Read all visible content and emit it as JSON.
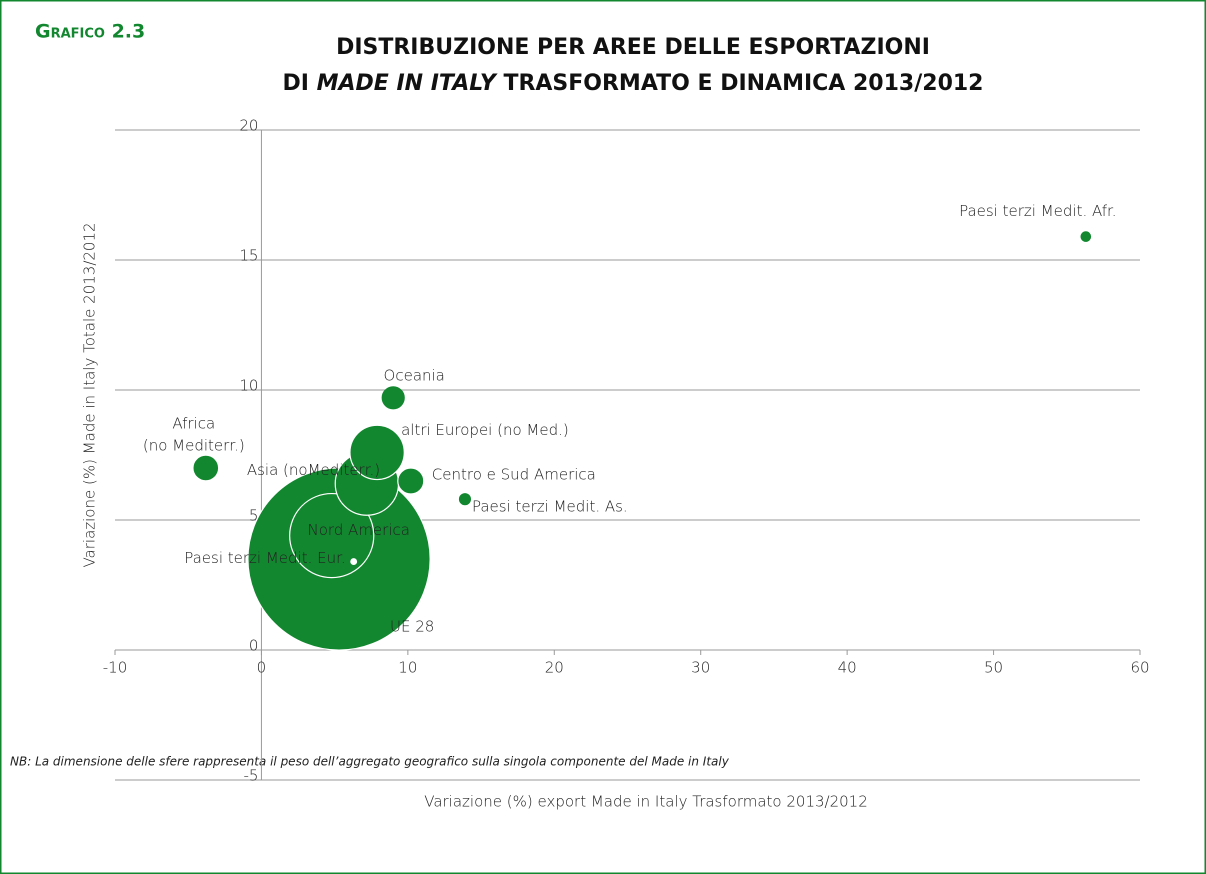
{
  "chart_data": {
    "type": "bubble",
    "figure_label": "Grafico 2.3",
    "title": "DISTRIBUZIONE PER AREE DELLE ESPORTAZIONI",
    "title_line2": [
      "DI ",
      "MADE IN ITALY",
      " TRASFORMATO E DINAMICA 2013/2012"
    ],
    "x_label": "Variazione (%) export Made in Italy Trasformato 2013/2012",
    "y_label": "Variazione (%) Made in Italy Totale 2013/2012",
    "note": "NB: La dimensione delle sfere rappresenta il peso dell’aggregato geografico sulla singola componente del Made in Italy",
    "labels": [
      "UE 28",
      "Nord America",
      "Asia (noMediterr.)",
      "altri Europei (no Med.)",
      "Centro e Sud America",
      [
        "Africa",
        "(no Mediterr.)"
      ],
      "Oceania",
      "Paesi terzi  Medit. As.",
      "Paesi terzi  Medit. Afr.",
      "Paesi terzi  Medit. Eur."
    ],
    "x": [
      5.3,
      4.8,
      7.2,
      7.9,
      10.2,
      -3.8,
      9.0,
      13.9,
      56.3,
      6.3
    ],
    "values": [
      3.5,
      4.4,
      6.4,
      7.6,
      6.5,
      7.0,
      9.7,
      5.8,
      15.9,
      3.4
    ],
    "sizes": [
      54,
      11.5,
      6.5,
      4.8,
      1.1,
      0.9,
      0.8,
      0.2,
      0.15,
      0.1
    ],
    "colors": [
      "#12872f",
      "#12872f",
      "#12872f",
      "#12872f",
      "#12872f",
      "#12872f",
      "#12872f",
      "#12872f",
      "#12872f",
      "#ffffff"
    ],
    "xlim": [
      -10,
      60
    ],
    "xticks": [
      -10,
      0,
      10,
      20,
      30,
      40,
      50,
      60
    ],
    "ylim": [
      -5,
      20
    ],
    "yticks": [
      -5,
      0,
      5,
      10,
      15,
      20
    ],
    "grid": true
  }
}
